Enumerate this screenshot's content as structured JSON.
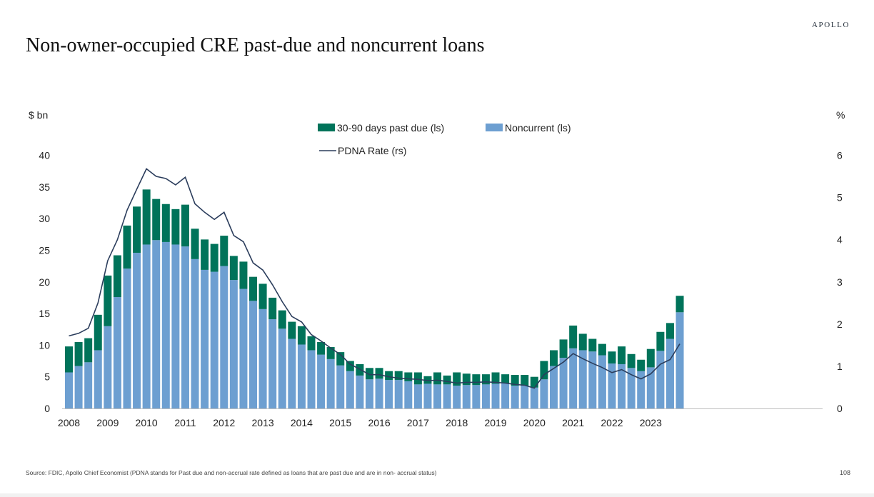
{
  "brand": "APOLLO",
  "title": "Non-owner-occupied CRE past-due and noncurrent loans",
  "source": "Source: FDIC, Apollo Chief Economist (PDNA stands for Past due and non-accrual rate defined as loans that are past due and are in non- accrual status)",
  "page_number": "108",
  "colors": {
    "past_due": "#00735a",
    "noncurrent": "#6d9fd1",
    "pdna_line": "#2b3d5c"
  },
  "chart_data": {
    "type": "bar",
    "title": "Non-owner-occupied CRE past-due and noncurrent loans",
    "left_axis_unit": "$ bn",
    "right_axis_unit": "%",
    "ylim_left": [
      0,
      40
    ],
    "ylim_right": [
      0,
      6
    ],
    "yticks_left": [
      "0",
      "5",
      "10",
      "15",
      "20",
      "25",
      "30",
      "35",
      "40"
    ],
    "yticks_right": [
      "0",
      "1",
      "2",
      "3",
      "4",
      "5",
      "6"
    ],
    "year_labels": [
      "2008",
      "2009",
      "2010",
      "2011",
      "2012",
      "2013",
      "2014",
      "2015",
      "2016",
      "2017",
      "2018",
      "2019",
      "2020",
      "2021",
      "2022",
      "2023"
    ],
    "x_start_year": 2008,
    "legend_placement": "top-center",
    "stacked": true,
    "grid": false,
    "series": [
      {
        "name": "Noncurrent (ls)",
        "kind": "bar",
        "axis": "left",
        "values": [
          5.7,
          6.7,
          7.3,
          9.2,
          13.0,
          17.6,
          22.1,
          24.6,
          25.9,
          26.6,
          26.3,
          25.9,
          25.6,
          23.6,
          21.9,
          21.6,
          22.5,
          20.3,
          18.9,
          17.0,
          15.7,
          14.1,
          12.6,
          11.0,
          10.1,
          9.2,
          8.5,
          7.8,
          6.8,
          5.9,
          5.2,
          4.6,
          4.7,
          4.5,
          4.5,
          4.3,
          3.8,
          3.9,
          3.8,
          3.8,
          3.6,
          3.7,
          3.7,
          3.8,
          3.9,
          4.0,
          3.6,
          3.6,
          3.3,
          4.6,
          6.7,
          8.0,
          9.5,
          9.2,
          9.0,
          8.4,
          7.1,
          7.0,
          6.4,
          5.9,
          6.5,
          9.1,
          11.0,
          15.2
        ]
      },
      {
        "name": "30-90 days past due (ls)",
        "kind": "bar",
        "axis": "left",
        "values": [
          4.1,
          3.8,
          3.8,
          5.6,
          8.0,
          6.6,
          6.8,
          7.3,
          8.7,
          6.5,
          6.0,
          5.6,
          6.6,
          4.8,
          4.8,
          4.4,
          4.8,
          3.8,
          4.3,
          3.8,
          4.0,
          3.4,
          2.9,
          2.7,
          2.9,
          2.2,
          2.0,
          1.9,
          2.1,
          1.6,
          1.8,
          1.8,
          1.7,
          1.4,
          1.4,
          1.4,
          1.9,
          1.2,
          1.9,
          1.4,
          2.1,
          1.8,
          1.7,
          1.6,
          1.8,
          1.4,
          1.7,
          1.7,
          1.7,
          2.9,
          2.5,
          2.9,
          3.6,
          2.6,
          2.0,
          1.8,
          1.9,
          2.8,
          2.2,
          1.8,
          2.9,
          3.0,
          2.5,
          2.6
        ]
      },
      {
        "name": "PDNA Rate (rs)",
        "kind": "line",
        "axis": "right",
        "values": [
          1.72,
          1.78,
          1.9,
          2.5,
          3.5,
          4.0,
          4.7,
          5.2,
          5.68,
          5.5,
          5.45,
          5.3,
          5.48,
          4.85,
          4.65,
          4.48,
          4.65,
          4.1,
          3.95,
          3.45,
          3.28,
          2.93,
          2.53,
          2.18,
          2.05,
          1.75,
          1.6,
          1.43,
          1.28,
          1.05,
          0.93,
          0.8,
          0.8,
          0.75,
          0.72,
          0.7,
          0.69,
          0.66,
          0.67,
          0.64,
          0.6,
          0.62,
          0.62,
          0.63,
          0.62,
          0.6,
          0.57,
          0.55,
          0.48,
          0.8,
          0.95,
          1.1,
          1.3,
          1.18,
          1.07,
          0.97,
          0.85,
          0.92,
          0.8,
          0.7,
          0.82,
          1.05,
          1.16,
          1.53
        ]
      }
    ]
  }
}
